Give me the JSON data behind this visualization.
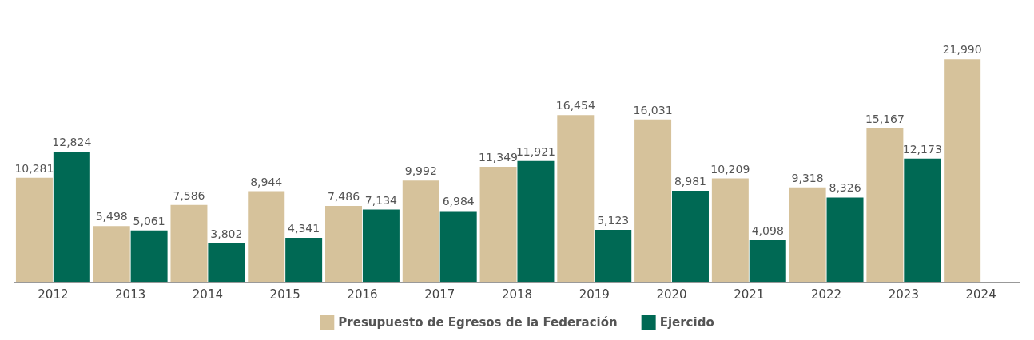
{
  "chart_data": {
    "type": "bar",
    "categories": [
      "2012",
      "2013",
      "2014",
      "2015",
      "2016",
      "2017",
      "2018",
      "2019",
      "2020",
      "2021",
      "2022",
      "2023",
      "2024"
    ],
    "series": [
      {
        "name": "Presupuesto de Egresos de la Federación",
        "color": "#d6c29b",
        "values": [
          10281,
          5498,
          7586,
          8944,
          7486,
          9992,
          11349,
          16454,
          16031,
          10209,
          9318,
          15167,
          21990
        ],
        "value_labels": [
          "10,281",
          "5,498",
          "7,586",
          "8,944",
          "7,486",
          "9,992",
          "11,349",
          "16,454",
          "16,031",
          "10,209",
          "9,318",
          "15,167",
          "21,990"
        ]
      },
      {
        "name": "Ejercido",
        "color": "#006954",
        "values": [
          12824,
          5061,
          3802,
          4341,
          7134,
          6984,
          11921,
          5123,
          8981,
          4098,
          8326,
          12173,
          null
        ],
        "value_labels": [
          "12,824",
          "5,061",
          "3,802",
          "4,341",
          "7,134",
          "6,984",
          "11,921",
          "5,123",
          "8,981",
          "4,098",
          "8,326",
          "12,173",
          null
        ]
      }
    ],
    "legend": "bottom"
  }
}
